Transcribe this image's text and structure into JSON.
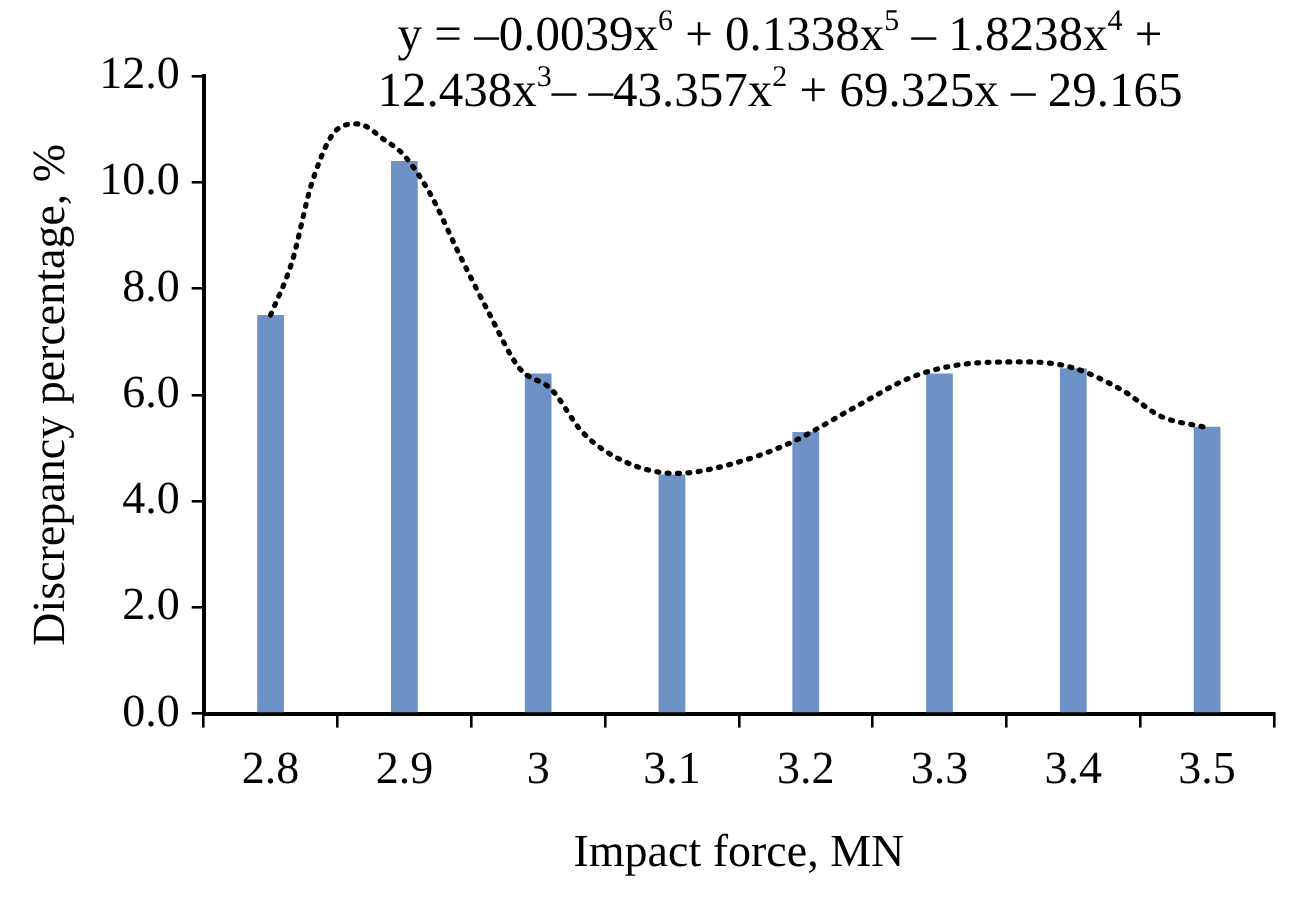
{
  "chart_data": {
    "type": "bar",
    "xlabel": "Impact force, MN",
    "ylabel": "Discrepancy percentage, %",
    "x": [
      2.8,
      2.9,
      3,
      3.1,
      3.2,
      3.3,
      3.4,
      3.5
    ],
    "xlim": [
      2.75,
      3.55
    ],
    "xticks": [
      {
        "value": 2.75,
        "label": null
      },
      2.8,
      {
        "value": 2.85,
        "label": null
      },
      2.9,
      {
        "value": 2.95,
        "label": null
      },
      3,
      {
        "value": 3.05,
        "label": null
      },
      3.1,
      {
        "value": 3.15,
        "label": null
      },
      3.2,
      {
        "value": 3.25,
        "label": null
      },
      3.3,
      {
        "value": 3.35,
        "label": null
      },
      3.4,
      {
        "value": 3.45,
        "label": null
      },
      3.5,
      {
        "value": 3.55,
        "label": null
      }
    ],
    "ylim": [
      0,
      12
    ],
    "yticks": [
      {
        "value": 0,
        "label": "0.0"
      },
      {
        "value": 2,
        "label": "2.0"
      },
      {
        "value": 4,
        "label": "4.0"
      },
      {
        "value": 6,
        "label": "6.0"
      },
      {
        "value": 8,
        "label": "8.0"
      },
      {
        "value": 10,
        "label": "10.0"
      },
      {
        "value": 12,
        "label": "12.0"
      }
    ],
    "series": [
      {
        "color": "#6f92c6",
        "values": [
          7.5,
          10.4,
          6.4,
          4.5,
          5.3,
          6.4,
          6.5,
          5.4
        ]
      },
      {
        "type": "line",
        "color": "#000000",
        "line_style": "dotted",
        "marker": "none",
        "x": [
          2.8,
          2.816,
          2.831,
          2.85,
          2.865,
          2.885,
          2.9,
          2.92,
          2.94,
          2.963,
          2.986,
          3.01,
          3.033,
          3.064,
          3.103,
          3.142,
          3.188,
          3.235,
          3.281,
          3.328,
          3.362,
          3.398,
          3.437,
          3.465,
          3.5
        ],
        "values": [
          7.5,
          8.5,
          10.0,
          11.0,
          11.1,
          10.8,
          10.5,
          9.75,
          8.7,
          7.55,
          6.5,
          6.1,
          5.3,
          4.75,
          4.52,
          4.68,
          5.09,
          5.74,
          6.35,
          6.6,
          6.62,
          6.52,
          6.08,
          5.6,
          5.38
        ]
      }
    ],
    "annotations": [
      "y = –0.0039x$^{6}$ + 0.1338x$^{5}$ – 1.8238x$^{4}$ + 12.438x$^{3}$– –43.357x$^{2}$ + 69.325x – 29.165"
    ]
  }
}
